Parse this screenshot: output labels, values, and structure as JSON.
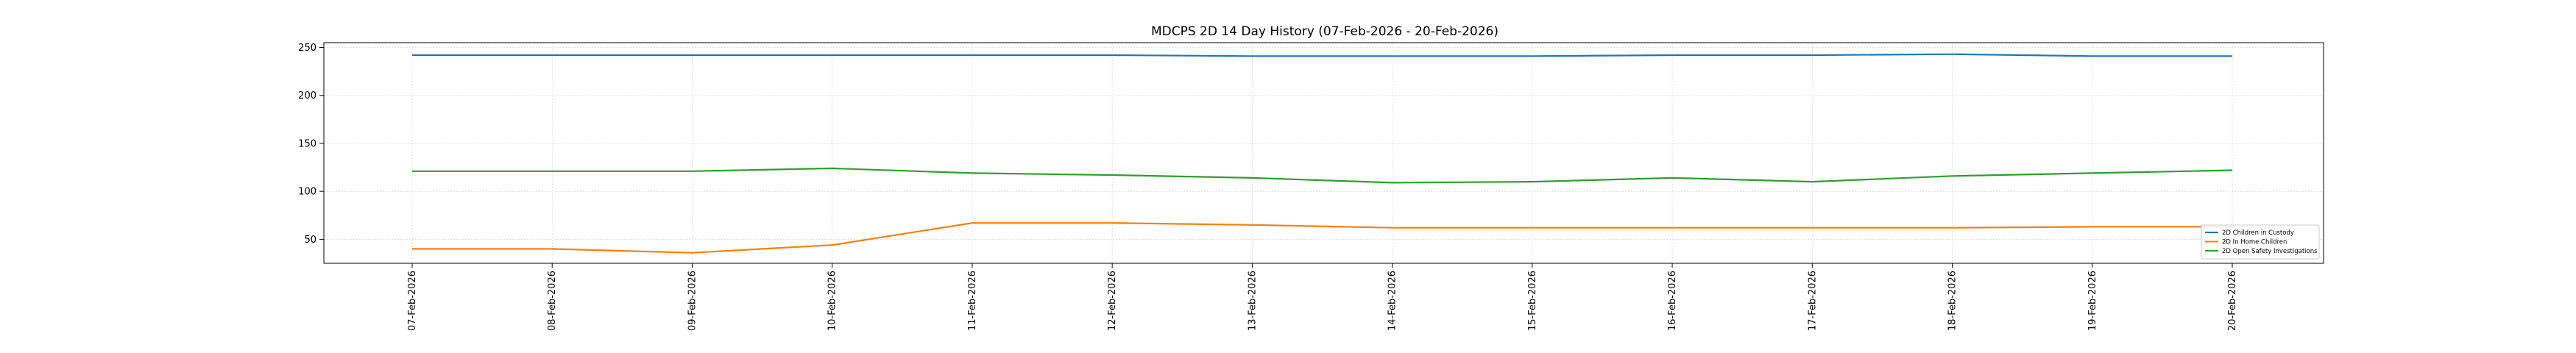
{
  "chart_data": {
    "type": "line",
    "title": "MDCPS 2D 14 Day History (07-Feb-2026 - 20-Feb-2026)",
    "xlabel": "",
    "ylabel": "",
    "categories": [
      "07-Feb-2026",
      "08-Feb-2026",
      "09-Feb-2026",
      "10-Feb-2026",
      "11-Feb-2026",
      "12-Feb-2026",
      "13-Feb-2026",
      "14-Feb-2026",
      "15-Feb-2026",
      "16-Feb-2026",
      "17-Feb-2026",
      "18-Feb-2026",
      "19-Feb-2026",
      "20-Feb-2026"
    ],
    "ylim": [
      25,
      255
    ],
    "yticks": [
      50,
      100,
      150,
      200,
      250
    ],
    "grid": true,
    "legend_position": "lower right",
    "series": [
      {
        "name": "2D Children in Custody",
        "color": "#1f77b4",
        "values": [
          242,
          242,
          242,
          242,
          242,
          242,
          241,
          241,
          241,
          242,
          242,
          243,
          241,
          241
        ]
      },
      {
        "name": "2D In Home Children",
        "color": "#ff7f0e",
        "values": [
          40,
          40,
          36,
          44,
          67,
          67,
          65,
          62,
          62,
          62,
          62,
          62,
          63,
          63
        ]
      },
      {
        "name": "2D Open Safety Investigations",
        "color": "#2ca02c",
        "values": [
          121,
          121,
          121,
          124,
          119,
          117,
          114,
          109,
          110,
          114,
          110,
          116,
          119,
          122
        ]
      }
    ]
  }
}
